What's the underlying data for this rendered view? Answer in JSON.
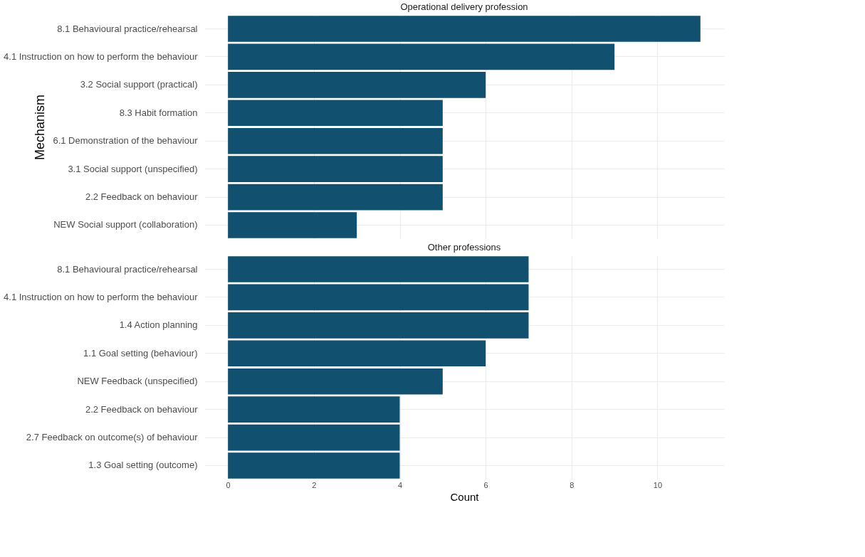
{
  "chart_data": [
    {
      "type": "bar",
      "orientation": "horizontal",
      "title": "Operational delivery profession",
      "ylabel": "Mechanism",
      "categories": [
        "8.1 Behavioural practice/rehearsal",
        "4.1 Instruction on how to perform the behaviour",
        "3.2 Social support (practical)",
        "8.3 Habit formation",
        "6.1 Demonstration of the behaviour",
        "3.1 Social support (unspecified)",
        "2.2 Feedback on behaviour",
        "NEW Social support (collaboration)"
      ],
      "series": [
        {
          "color": "#11506f",
          "values": [
            11,
            9,
            6,
            5,
            5,
            5,
            5,
            3
          ]
        }
      ],
      "xlim": [
        -0.55,
        11.55
      ],
      "xticks": [
        0,
        2,
        4,
        6,
        8,
        10
      ],
      "grid": true,
      "tick_labels": "y"
    },
    {
      "type": "bar",
      "orientation": "horizontal",
      "title": "Other professions",
      "xlabel": "Count",
      "categories": [
        "8.1 Behavioural practice/rehearsal",
        "4.1 Instruction on how to perform the behaviour",
        "1.4 Action planning",
        "1.1 Goal setting (behaviour)",
        "NEW Feedback (unspecified)",
        "2.2 Feedback on behaviour",
        "2.7 Feedback on outcome(s) of behaviour",
        "1.3 Goal setting (outcome)"
      ],
      "series": [
        {
          "color": "#11506f",
          "values": [
            7,
            7,
            7,
            6,
            5,
            4,
            4,
            4
          ]
        }
      ],
      "xlim": [
        -0.55,
        11.55
      ],
      "xticks": [
        0,
        2,
        4,
        6,
        8,
        10
      ],
      "grid": true
    }
  ]
}
